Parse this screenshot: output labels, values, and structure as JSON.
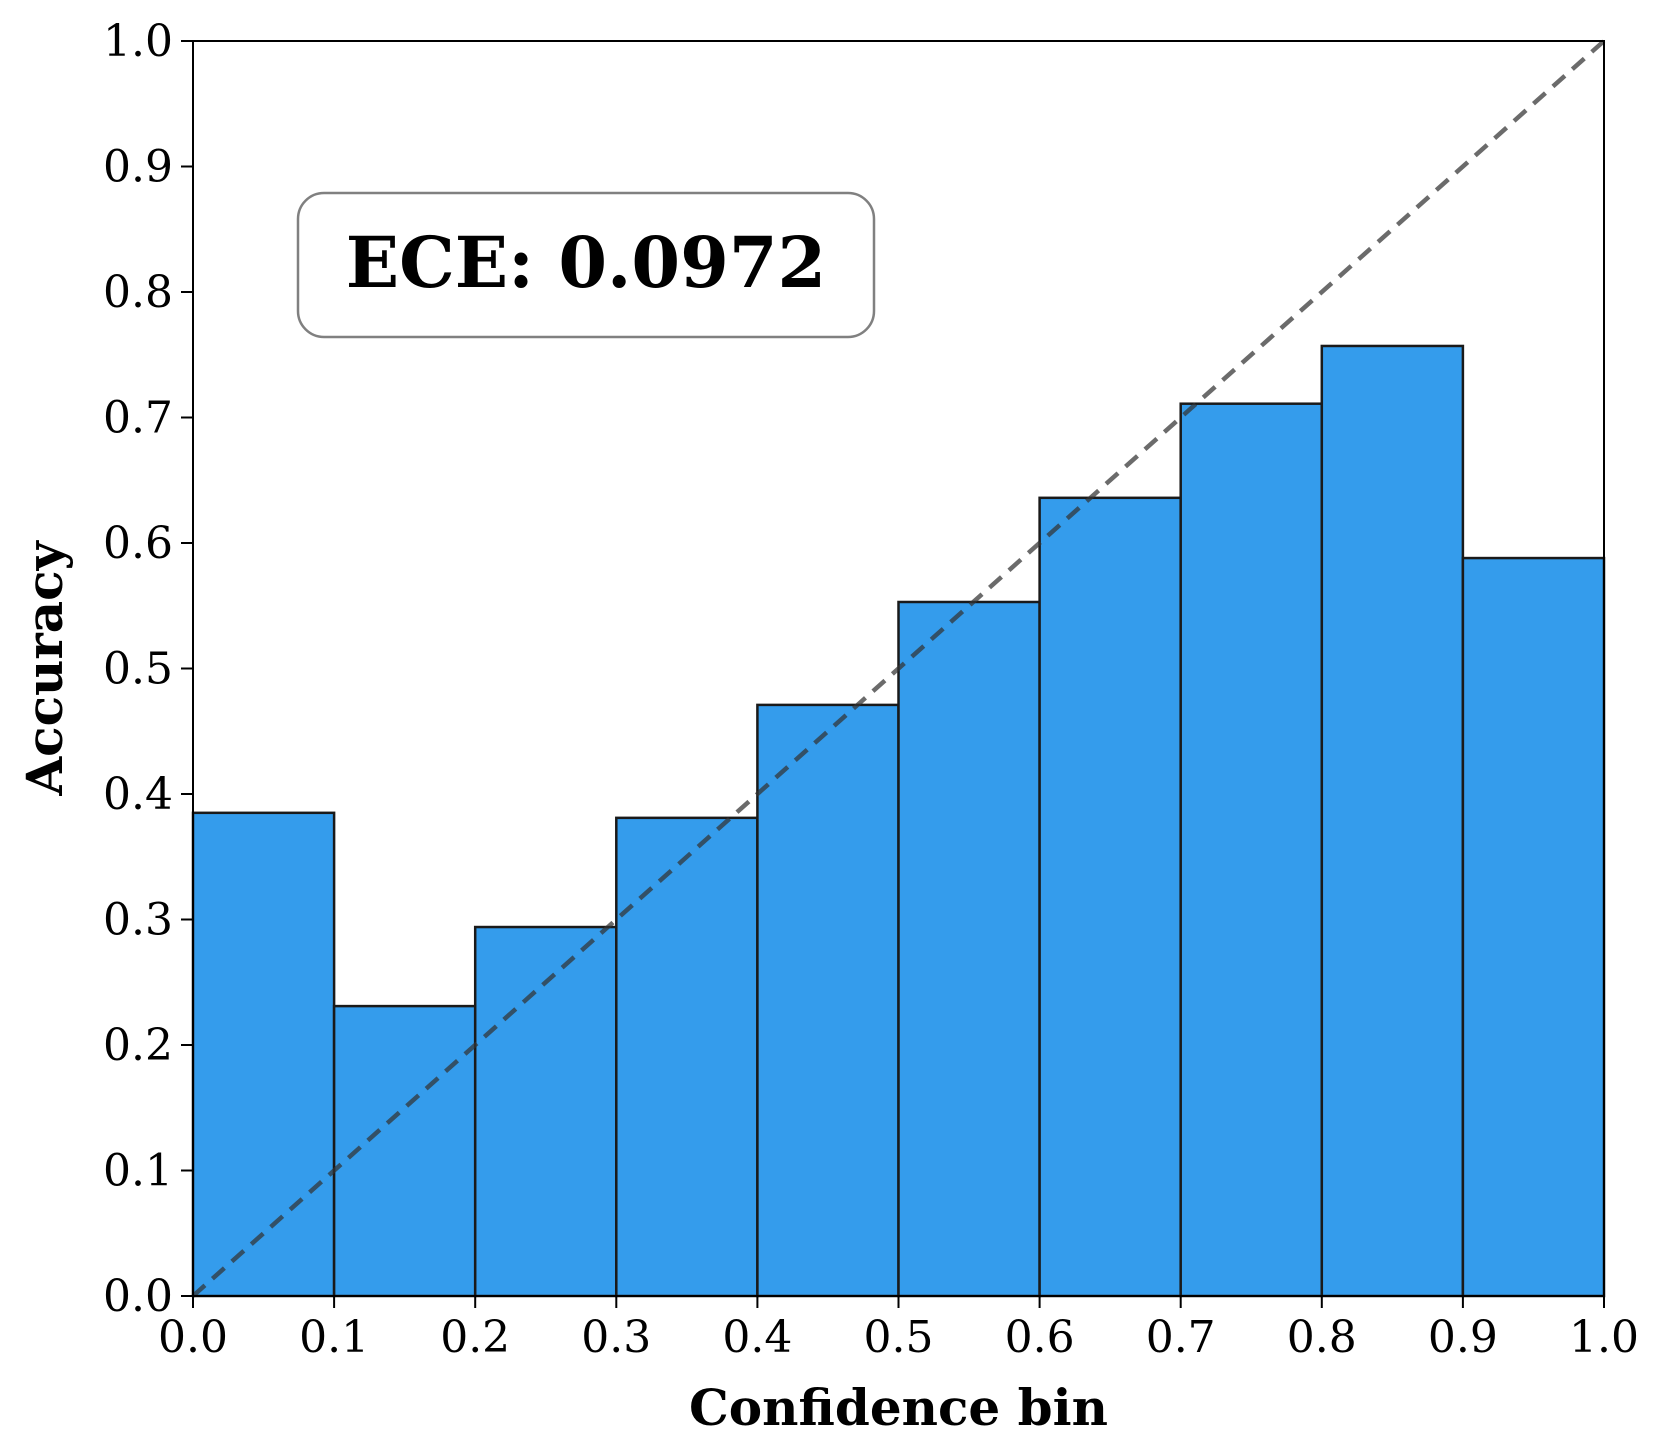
{
  "chart_data": {
    "type": "bar",
    "title": "",
    "xlabel": "Confidence bin",
    "ylabel": "Accuracy",
    "xlim": [
      0.0,
      1.0
    ],
    "ylim": [
      0.0,
      1.0
    ],
    "x_ticks": [
      "0.0",
      "0.1",
      "0.2",
      "0.3",
      "0.4",
      "0.5",
      "0.6",
      "0.7",
      "0.8",
      "0.9",
      "1.0"
    ],
    "y_ticks": [
      "0.0",
      "0.1",
      "0.2",
      "0.3",
      "0.4",
      "0.5",
      "0.6",
      "0.7",
      "0.8",
      "0.9",
      "1.0"
    ],
    "bins": [
      {
        "x_start": 0.0,
        "x_end": 0.1,
        "accuracy": 0.385
      },
      {
        "x_start": 0.1,
        "x_end": 0.2,
        "accuracy": 0.231
      },
      {
        "x_start": 0.2,
        "x_end": 0.3,
        "accuracy": 0.294
      },
      {
        "x_start": 0.3,
        "x_end": 0.4,
        "accuracy": 0.381
      },
      {
        "x_start": 0.4,
        "x_end": 0.5,
        "accuracy": 0.471
      },
      {
        "x_start": 0.5,
        "x_end": 0.6,
        "accuracy": 0.553
      },
      {
        "x_start": 0.6,
        "x_end": 0.7,
        "accuracy": 0.636
      },
      {
        "x_start": 0.7,
        "x_end": 0.8,
        "accuracy": 0.711
      },
      {
        "x_start": 0.8,
        "x_end": 0.9,
        "accuracy": 0.757
      },
      {
        "x_start": 0.9,
        "x_end": 1.0,
        "accuracy": 0.588
      }
    ],
    "reference_line": {
      "x": [
        0.0,
        1.0
      ],
      "y": [
        0.0,
        1.0
      ],
      "style": "dashed"
    },
    "annotation": {
      "text": "ECE: 0.0972",
      "placement": "upper-left"
    },
    "grid": false,
    "colors": {
      "bar_fill": "#349cec",
      "bar_edge": "#1a1a1a",
      "reference_line": "#333333",
      "annotation_border": "#808080"
    }
  }
}
